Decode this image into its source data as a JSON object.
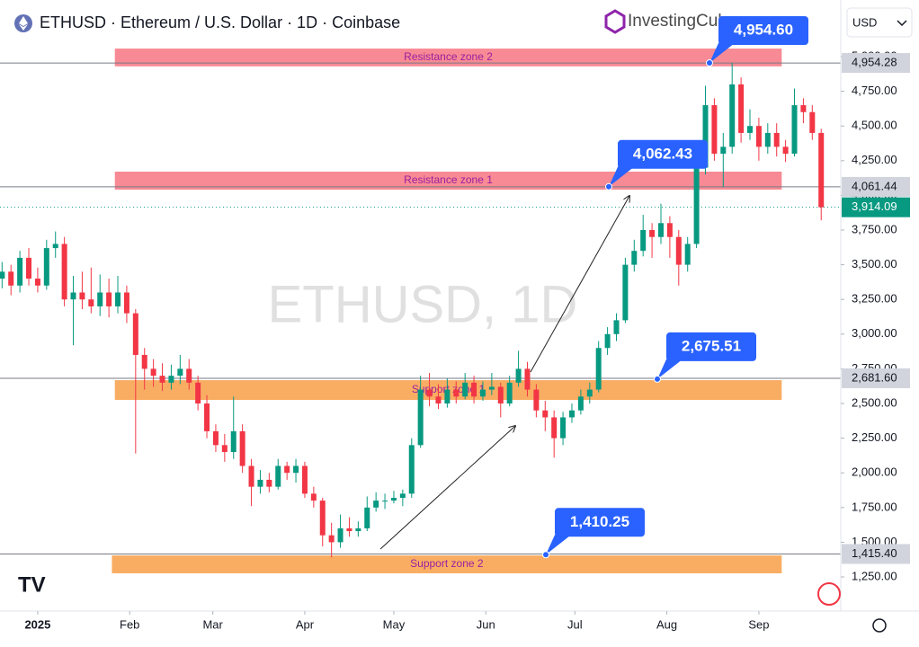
{
  "chart_data": {
    "type": "candlestick",
    "title": "ETHUSD · Ethereum / U.S. Dollar · 1D · Coinbase",
    "currency": "USD",
    "brand": "InvestingCube",
    "watermark": "ETHUSD, 1D",
    "up_color": "#089981",
    "down_color": "#f23645",
    "xlim": [
      -12.7,
      270.6
    ],
    "xticks": [
      {
        "value": 0,
        "label": "2025"
      },
      {
        "value": 31,
        "label": "Feb"
      },
      {
        "value": 59,
        "label": "Mar"
      },
      {
        "value": 90,
        "label": "Apr"
      },
      {
        "value": 120,
        "label": "May"
      },
      {
        "value": 151,
        "label": "Jun"
      },
      {
        "value": 181,
        "label": "Jul"
      },
      {
        "value": 212,
        "label": "Aug"
      },
      {
        "value": 243,
        "label": "Sep"
      }
    ],
    "ylim": [
      1004,
      5149
    ],
    "yticks": [
      {
        "value": 1250,
        "label": "1,250.00"
      },
      {
        "value": 1500,
        "label": "1,500.00"
      },
      {
        "value": 1750,
        "label": "1,750.00"
      },
      {
        "value": 2000,
        "label": "2,000.00"
      },
      {
        "value": 2250,
        "label": "2,250.00"
      },
      {
        "value": 2500,
        "label": "2,500.00"
      },
      {
        "value": 2750,
        "label": "2,750.00"
      },
      {
        "value": 3000,
        "label": "3,000.00"
      },
      {
        "value": 3250,
        "label": "3,250.00"
      },
      {
        "value": 3500,
        "label": "3,500.00"
      },
      {
        "value": 3750,
        "label": "3,750.00"
      },
      {
        "value": 4000,
        "label": "4,000.00"
      },
      {
        "value": 4250,
        "label": "4,250.00"
      },
      {
        "value": 4500,
        "label": "4,500.00"
      },
      {
        "value": 4750,
        "label": "4,750.00"
      },
      {
        "value": 5000,
        "label": "5,000.00"
      }
    ],
    "x": [
      -12,
      -9,
      -6,
      -3,
      0,
      3,
      6,
      9,
      12,
      15,
      18,
      21,
      24,
      27,
      30,
      33,
      36,
      39,
      42,
      45,
      48,
      51,
      54,
      57,
      60,
      63,
      66,
      69,
      72,
      75,
      78,
      81,
      84,
      87,
      90,
      93,
      96,
      99,
      102,
      105,
      108,
      111,
      114,
      117,
      120,
      123,
      126,
      129,
      132,
      135,
      138,
      141,
      144,
      147,
      150,
      153,
      156,
      159,
      162,
      165,
      168,
      171,
      174,
      177,
      180,
      183,
      186,
      189,
      192,
      195,
      198,
      201,
      204,
      207,
      210,
      213,
      216,
      219,
      222,
      225,
      228,
      231,
      234,
      237,
      240,
      243,
      246,
      249,
      252,
      255,
      258,
      261,
      264
    ],
    "open": [
      3400,
      3450,
      3350,
      3550,
      3400,
      3350,
      3620,
      3650,
      3250,
      3300,
      3250,
      3200,
      3300,
      3200,
      3300,
      3150,
      2850,
      2750,
      2700,
      2650,
      2700,
      2750,
      2650,
      2500,
      2300,
      2200,
      2150,
      2300,
      2050,
      1900,
      1950,
      1900,
      2050,
      2000,
      2050,
      1850,
      1800,
      1550,
      1500,
      1600,
      1580,
      1600,
      1750,
      1800,
      1800,
      1820,
      1850,
      2200,
      2600,
      2550,
      2500,
      2600,
      2550,
      2650,
      2550,
      2600,
      2620,
      2500,
      2650,
      2750,
      2600,
      2450,
      2400,
      2250,
      2400,
      2450,
      2550,
      2600,
      2900,
      3000,
      3100,
      3500,
      3600,
      3750,
      3700,
      3800,
      3700,
      3500,
      3650,
      4200,
      4650,
      4300,
      4350,
      4800,
      4450,
      4500,
      4350,
      4450,
      4350,
      4300,
      4650,
      4600,
      4450
    ],
    "high": [
      3520,
      3500,
      3600,
      3620,
      3480,
      3680,
      3740,
      3700,
      3420,
      3450,
      3480,
      3430,
      3400,
      3420,
      3350,
      3180,
      2900,
      2820,
      2790,
      2780,
      2850,
      2820,
      2700,
      2560,
      2350,
      2280,
      2550,
      2350,
      2100,
      2020,
      2000,
      2100,
      2080,
      2100,
      2080,
      1900,
      1820,
      1640,
      1700,
      1680,
      1650,
      1830,
      1860,
      1850,
      1870,
      1880,
      2250,
      2700,
      2720,
      2640,
      2680,
      2660,
      2720,
      2700,
      2660,
      2720,
      2650,
      2700,
      2880,
      2800,
      2640,
      2520,
      2450,
      2440,
      2500,
      2600,
      2650,
      2950,
      3050,
      3150,
      3550,
      3680,
      3860,
      3800,
      3940,
      3850,
      3750,
      3700,
      4250,
      4790,
      4700,
      4450,
      4955,
      4850,
      4620,
      4560,
      4520,
      4520,
      4400,
      4770,
      4700,
      4650,
      4480
    ],
    "low": [
      3330,
      3280,
      3300,
      3350,
      3300,
      3320,
      3550,
      3200,
      2920,
      3180,
      3150,
      3130,
      3120,
      3150,
      3080,
      2140,
      2600,
      2620,
      2590,
      2600,
      2640,
      2600,
      2450,
      2250,
      2150,
      2080,
      2100,
      2000,
      1760,
      1850,
      1860,
      1880,
      1950,
      1930,
      1820,
      1750,
      1470,
      1390,
      1460,
      1540,
      1540,
      1580,
      1720,
      1740,
      1780,
      1760,
      1820,
      2180,
      2480,
      2460,
      2470,
      2500,
      2530,
      2500,
      2520,
      2560,
      2400,
      2480,
      2620,
      2550,
      2400,
      2300,
      2110,
      2200,
      2360,
      2420,
      2500,
      2580,
      2850,
      2950,
      3080,
      3450,
      3560,
      3550,
      3650,
      3550,
      3350,
      3450,
      3620,
      4150,
      4250,
      4060,
      4300,
      4380,
      4400,
      4250,
      4300,
      4280,
      4240,
      4280,
      4520,
      4400,
      3820
    ],
    "close": [
      3450,
      3350,
      3550,
      3400,
      3350,
      3620,
      3650,
      3250,
      3300,
      3250,
      3200,
      3300,
      3200,
      3300,
      3150,
      2850,
      2750,
      2700,
      2650,
      2700,
      2750,
      2650,
      2500,
      2300,
      2200,
      2150,
      2300,
      2050,
      1900,
      1950,
      1900,
      2050,
      2000,
      2050,
      1850,
      1800,
      1550,
      1500,
      1600,
      1580,
      1600,
      1750,
      1800,
      1800,
      1820,
      1850,
      2200,
      2600,
      2550,
      2500,
      2600,
      2550,
      2650,
      2550,
      2600,
      2620,
      2500,
      2650,
      2750,
      2600,
      2450,
      2400,
      2250,
      2400,
      2450,
      2550,
      2600,
      2900,
      3000,
      3100,
      3500,
      3600,
      3750,
      3700,
      3800,
      3700,
      3500,
      3650,
      4200,
      4650,
      4300,
      4350,
      4800,
      4450,
      4500,
      4350,
      4450,
      4350,
      4300,
      4650,
      4600,
      4450,
      3914.09
    ],
    "zones": [
      {
        "label": "Resistance zone 2",
        "range": [
          4930,
          5058
        ],
        "xrange": [
          26,
          250.7
        ],
        "color": "#f7848e"
      },
      {
        "label": "Resistance zone 1",
        "range": [
          4041,
          4171
        ],
        "xrange": [
          26,
          250.7
        ],
        "color": "#f7848e"
      },
      {
        "label": "Support zone 1",
        "range": [
          2526,
          2668
        ],
        "xrange": [
          26,
          250.7
        ],
        "color": "#f9a95b"
      },
      {
        "label": "Support zone 2",
        "range": [
          1276,
          1405
        ],
        "xrange": [
          25,
          250.7
        ],
        "color": "#f9a95b"
      }
    ],
    "price_lines": [
      {
        "value": 4954.28,
        "label": "4,954.28",
        "color": "#787b86"
      },
      {
        "value": 4061.44,
        "label": "4,061.44",
        "color": "#787b86"
      },
      {
        "value": 3914.09,
        "label": "3,914.09",
        "color": "#089981"
      },
      {
        "value": 2681.6,
        "label": "2,681.60",
        "color": "#787b86"
      },
      {
        "value": 1415.4,
        "label": "1,415.40",
        "color": "#787b86"
      }
    ],
    "callouts": [
      {
        "value": 4954.6,
        "label": "4,954.60"
      },
      {
        "value": 4062.43,
        "label": "4,062.43"
      },
      {
        "value": 2675.51,
        "label": "2,675.51"
      },
      {
        "value": 1410.25,
        "label": "1,410.25"
      }
    ]
  }
}
